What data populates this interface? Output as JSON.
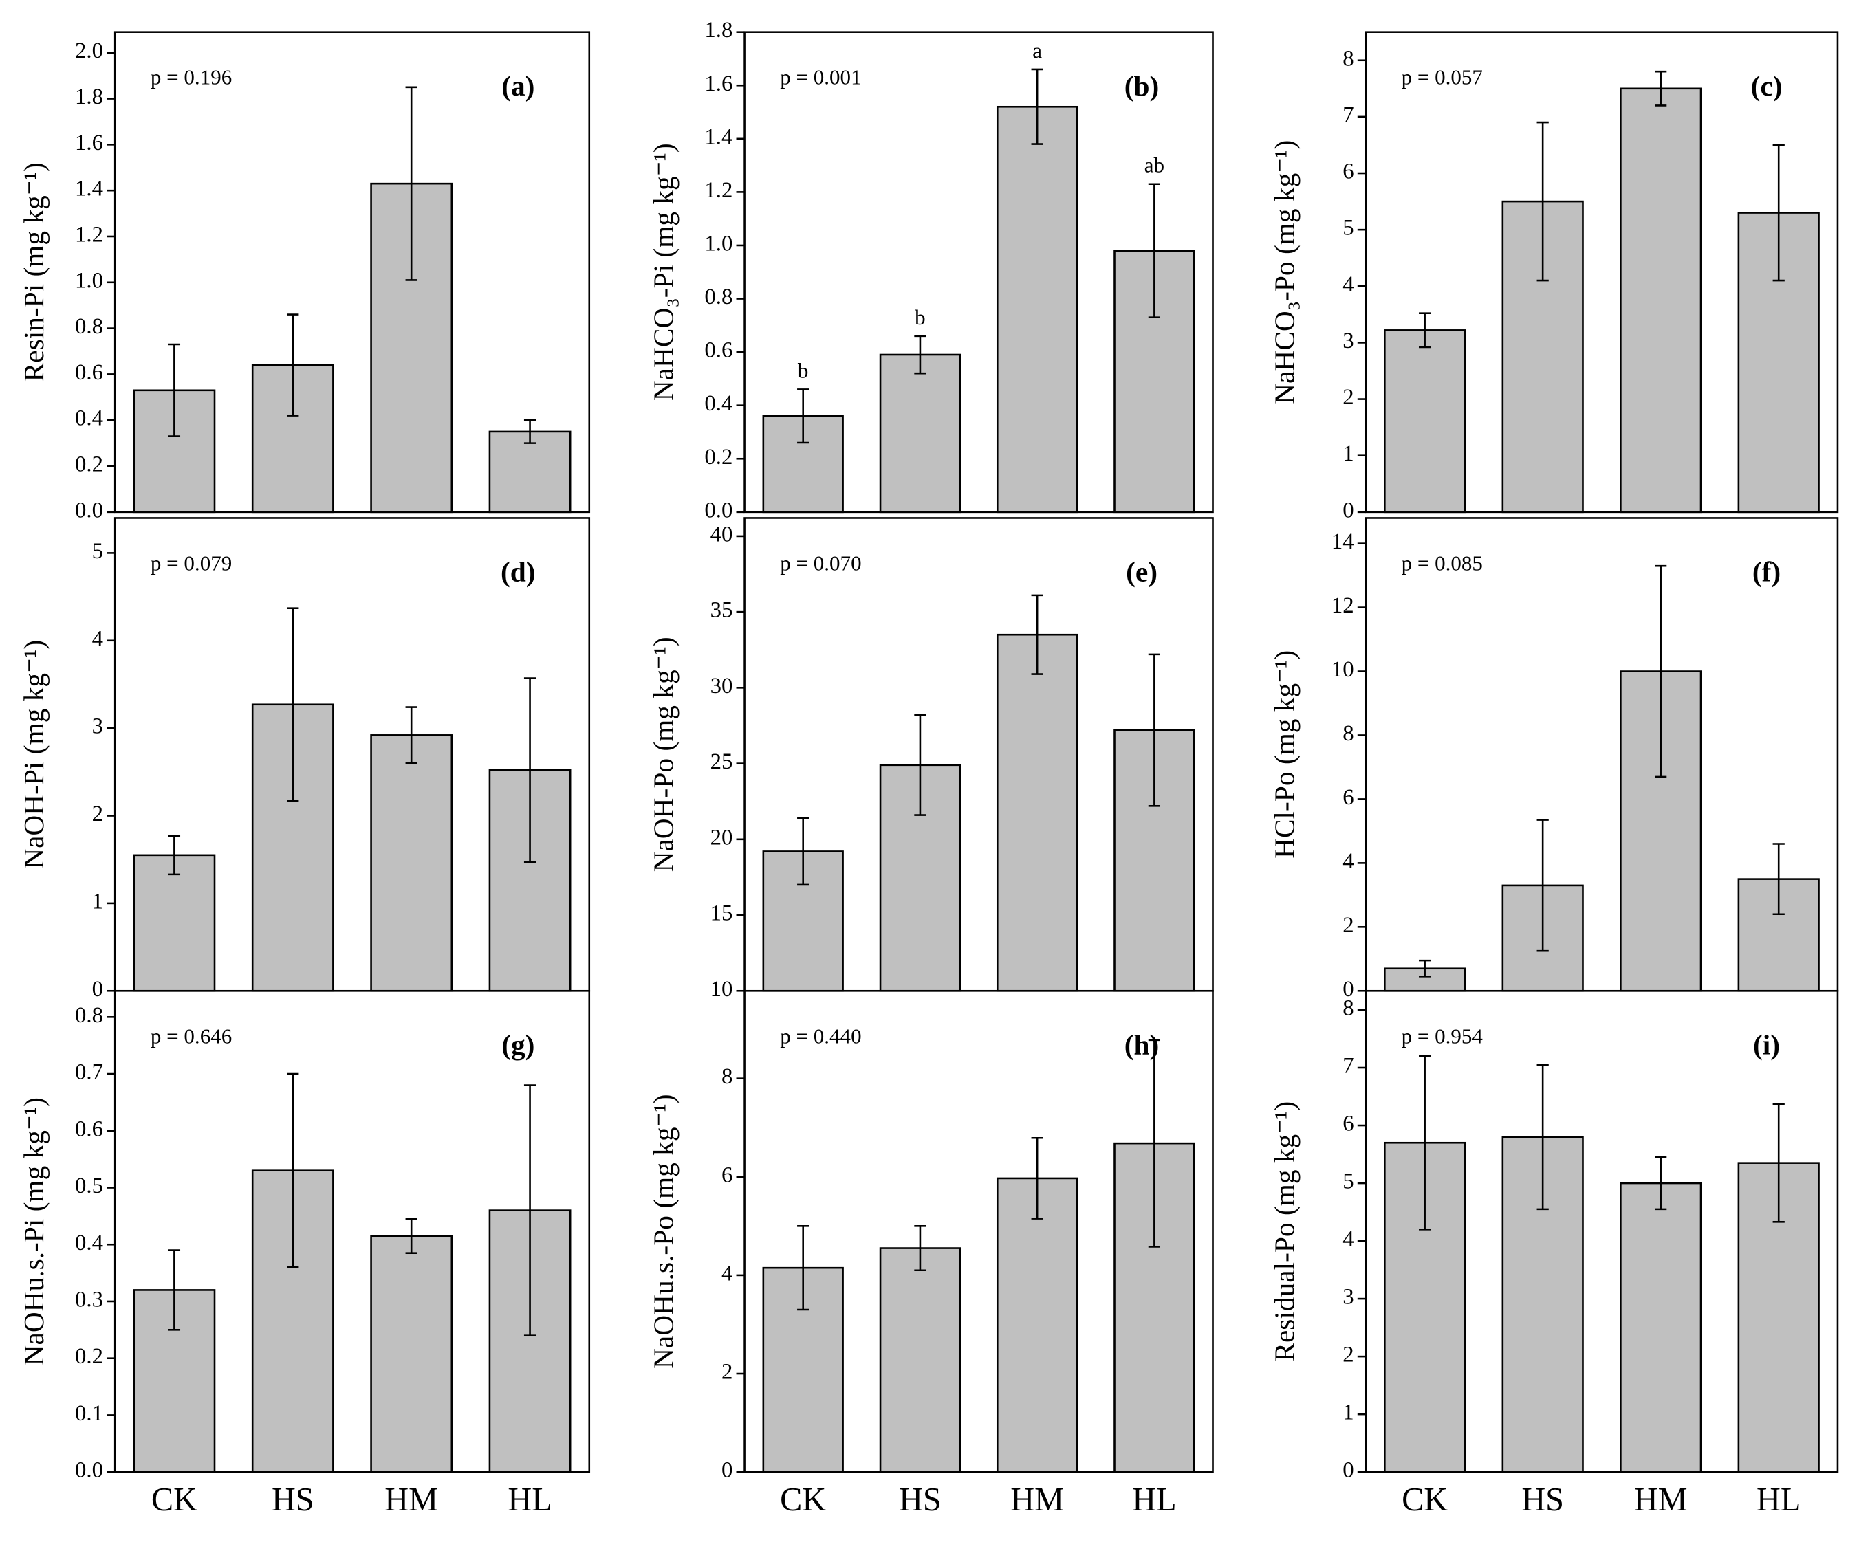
{
  "chart_data": [
    {
      "type": "bar",
      "panel_label": "(a)",
      "annotation": "p = 0.196",
      "ylabel": "Resin-Pi (mg kg⁻¹)",
      "color": "#c0c0c0",
      "ylim": [
        0,
        2.09
      ],
      "yticks": [
        {
          "value": 0,
          "label": "0.0"
        },
        0.2,
        0.4,
        0.6,
        0.8,
        {
          "value": 1,
          "label": "1.0"
        },
        1.2,
        1.4,
        1.6,
        1.8,
        {
          "value": 2,
          "label": "2.0"
        }
      ],
      "values": [
        0.53,
        0.64,
        1.43,
        0.35
      ],
      "errors": [
        0.2,
        0.22,
        0.42,
        0.05
      ]
    },
    {
      "type": "bar",
      "panel_label": "(b)",
      "annotation": "p = 0.001",
      "ylabel": "NaHCO₃-Pi (mg kg⁻¹)",
      "color": "#c0c0c0",
      "ylim": [
        0,
        1.8
      ],
      "yticks": [
        {
          "value": 0,
          "label": "0.0"
        },
        0.2,
        0.4,
        0.6,
        0.8,
        {
          "value": 1,
          "label": "1.0"
        },
        1.2,
        1.4,
        1.6,
        1.8
      ],
      "values": [
        0.36,
        0.59,
        1.52,
        0.98
      ],
      "errors": [
        0.1,
        0.07,
        0.14,
        0.25
      ],
      "letter_labels": [
        "b",
        "b",
        "a",
        "ab"
      ]
    },
    {
      "type": "bar",
      "panel_label": "(c)",
      "annotation": "p = 0.057",
      "ylabel": "NaHCO₃-Po (mg kg⁻¹)",
      "color": "#c0c0c0",
      "ylim": [
        0,
        8.5
      ],
      "yticks": [
        0,
        1,
        2,
        3,
        4,
        5,
        6,
        7,
        8
      ],
      "values": [
        3.22,
        5.5,
        7.5,
        5.3
      ],
      "errors": [
        0.3,
        1.4,
        0.3,
        1.2
      ]
    },
    {
      "type": "bar",
      "panel_label": "(d)",
      "annotation": "p = 0.079",
      "ylabel": "NaOH-Pi (mg kg⁻¹)",
      "color": "#c0c0c0",
      "ylim": [
        0,
        5.4
      ],
      "yticks": [
        0,
        1,
        2,
        3,
        4,
        5
      ],
      "values": [
        1.55,
        3.27,
        2.92,
        2.52
      ],
      "errors": [
        0.22,
        1.1,
        0.32,
        1.05
      ]
    },
    {
      "type": "bar",
      "panel_label": "(e)",
      "annotation": "p = 0.070",
      "ylabel": "NaOH-Po (mg kg⁻¹)",
      "color": "#c0c0c0",
      "ylim": [
        10,
        41.2
      ],
      "yticks": [
        10,
        15,
        20,
        25,
        30,
        35,
        40
      ],
      "values": [
        19.2,
        24.9,
        33.5,
        27.2
      ],
      "errors": [
        2.2,
        3.3,
        2.6,
        5
      ]
    },
    {
      "type": "bar",
      "panel_label": "(f)",
      "annotation": "p = 0.085",
      "ylabel": "HCl-Po (mg kg⁻¹)",
      "color": "#c0c0c0",
      "ylim": [
        0,
        14.8
      ],
      "yticks": [
        0,
        2,
        4,
        6,
        8,
        10,
        12,
        14
      ],
      "values": [
        0.7,
        3.3,
        10,
        3.5
      ],
      "errors": [
        0.25,
        2.05,
        3.3,
        1.1
      ]
    },
    {
      "type": "bar",
      "panel_label": "(g)",
      "annotation": "p = 0.646",
      "ylabel": "NaOHu.s.-Pi (mg kg⁻¹)",
      "color": "#c0c0c0",
      "ylim": [
        0,
        0.846
      ],
      "yticks": [
        {
          "value": 0,
          "label": "0.0"
        },
        0.1,
        0.2,
        0.3,
        0.4,
        0.5,
        0.6,
        0.7,
        0.8
      ],
      "values": [
        0.32,
        0.53,
        0.415,
        0.46
      ],
      "errors": [
        0.07,
        0.17,
        0.03,
        0.22
      ],
      "categories": [
        "CK",
        "HS",
        "HM",
        "HL"
      ]
    },
    {
      "type": "bar",
      "panel_label": "(h)",
      "annotation": "p = 0.440",
      "ylabel": "NaOHu.s.-Po (mg kg⁻¹)",
      "color": "#c0c0c0",
      "ylim": [
        0,
        9.78
      ],
      "yticks": [
        0,
        2,
        4,
        6,
        8
      ],
      "values": [
        4.15,
        4.55,
        5.97,
        6.68
      ],
      "errors": [
        0.85,
        0.45,
        0.82,
        2.1
      ],
      "categories": [
        "CK",
        "HS",
        "HM",
        "HL"
      ]
    },
    {
      "type": "bar",
      "panel_label": "(i)",
      "annotation": "p = 0.954",
      "ylabel": "Residual-Po (mg kg⁻¹)",
      "color": "#c0c0c0",
      "ylim": [
        0,
        8.33
      ],
      "yticks": [
        0,
        1,
        2,
        3,
        4,
        5,
        6,
        7,
        8
      ],
      "values": [
        5.7,
        5.8,
        5.0,
        5.35
      ],
      "errors": [
        1.5,
        1.25,
        0.45,
        1.02
      ],
      "categories": [
        "CK",
        "HS",
        "HM",
        "HL"
      ]
    }
  ]
}
